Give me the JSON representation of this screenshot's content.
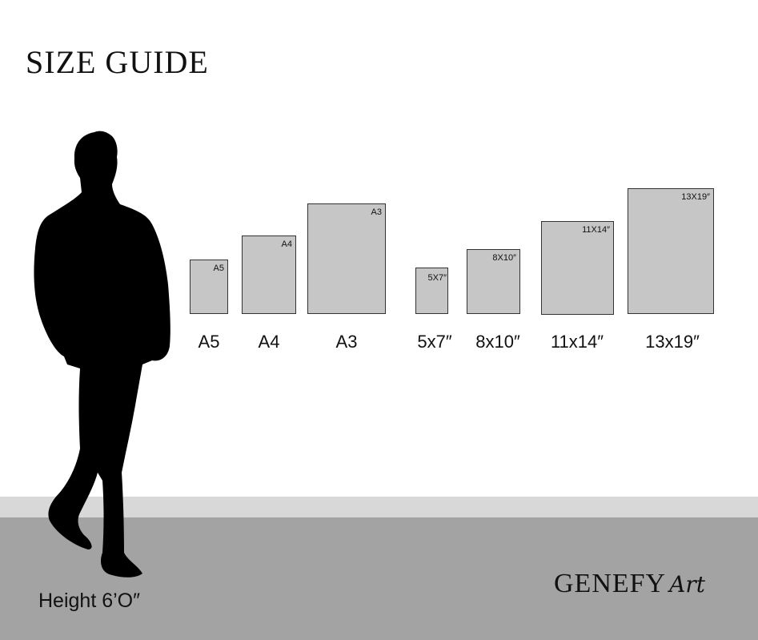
{
  "title": "SIZE GUIDE",
  "sizes": [
    {
      "tag": "A5",
      "label": "A5"
    },
    {
      "tag": "A4",
      "label": "A4"
    },
    {
      "tag": "A3",
      "label": "A3"
    },
    {
      "tag": "5X7″",
      "label": "5x7″"
    },
    {
      "tag": "8X10″",
      "label": "8x10″"
    },
    {
      "tag": "11X14″",
      "label": "11x14″"
    },
    {
      "tag": "13X19″",
      "label": "13x19″"
    }
  ],
  "height_label": "Height 6’O″",
  "logo": {
    "word": "GENEFY",
    "script": "Art"
  },
  "colors": {
    "box_fill": "#c6c6c6",
    "floor_light": "#d8d8d8",
    "floor_dark": "#a3a3a3",
    "silhouette": "#000000"
  }
}
